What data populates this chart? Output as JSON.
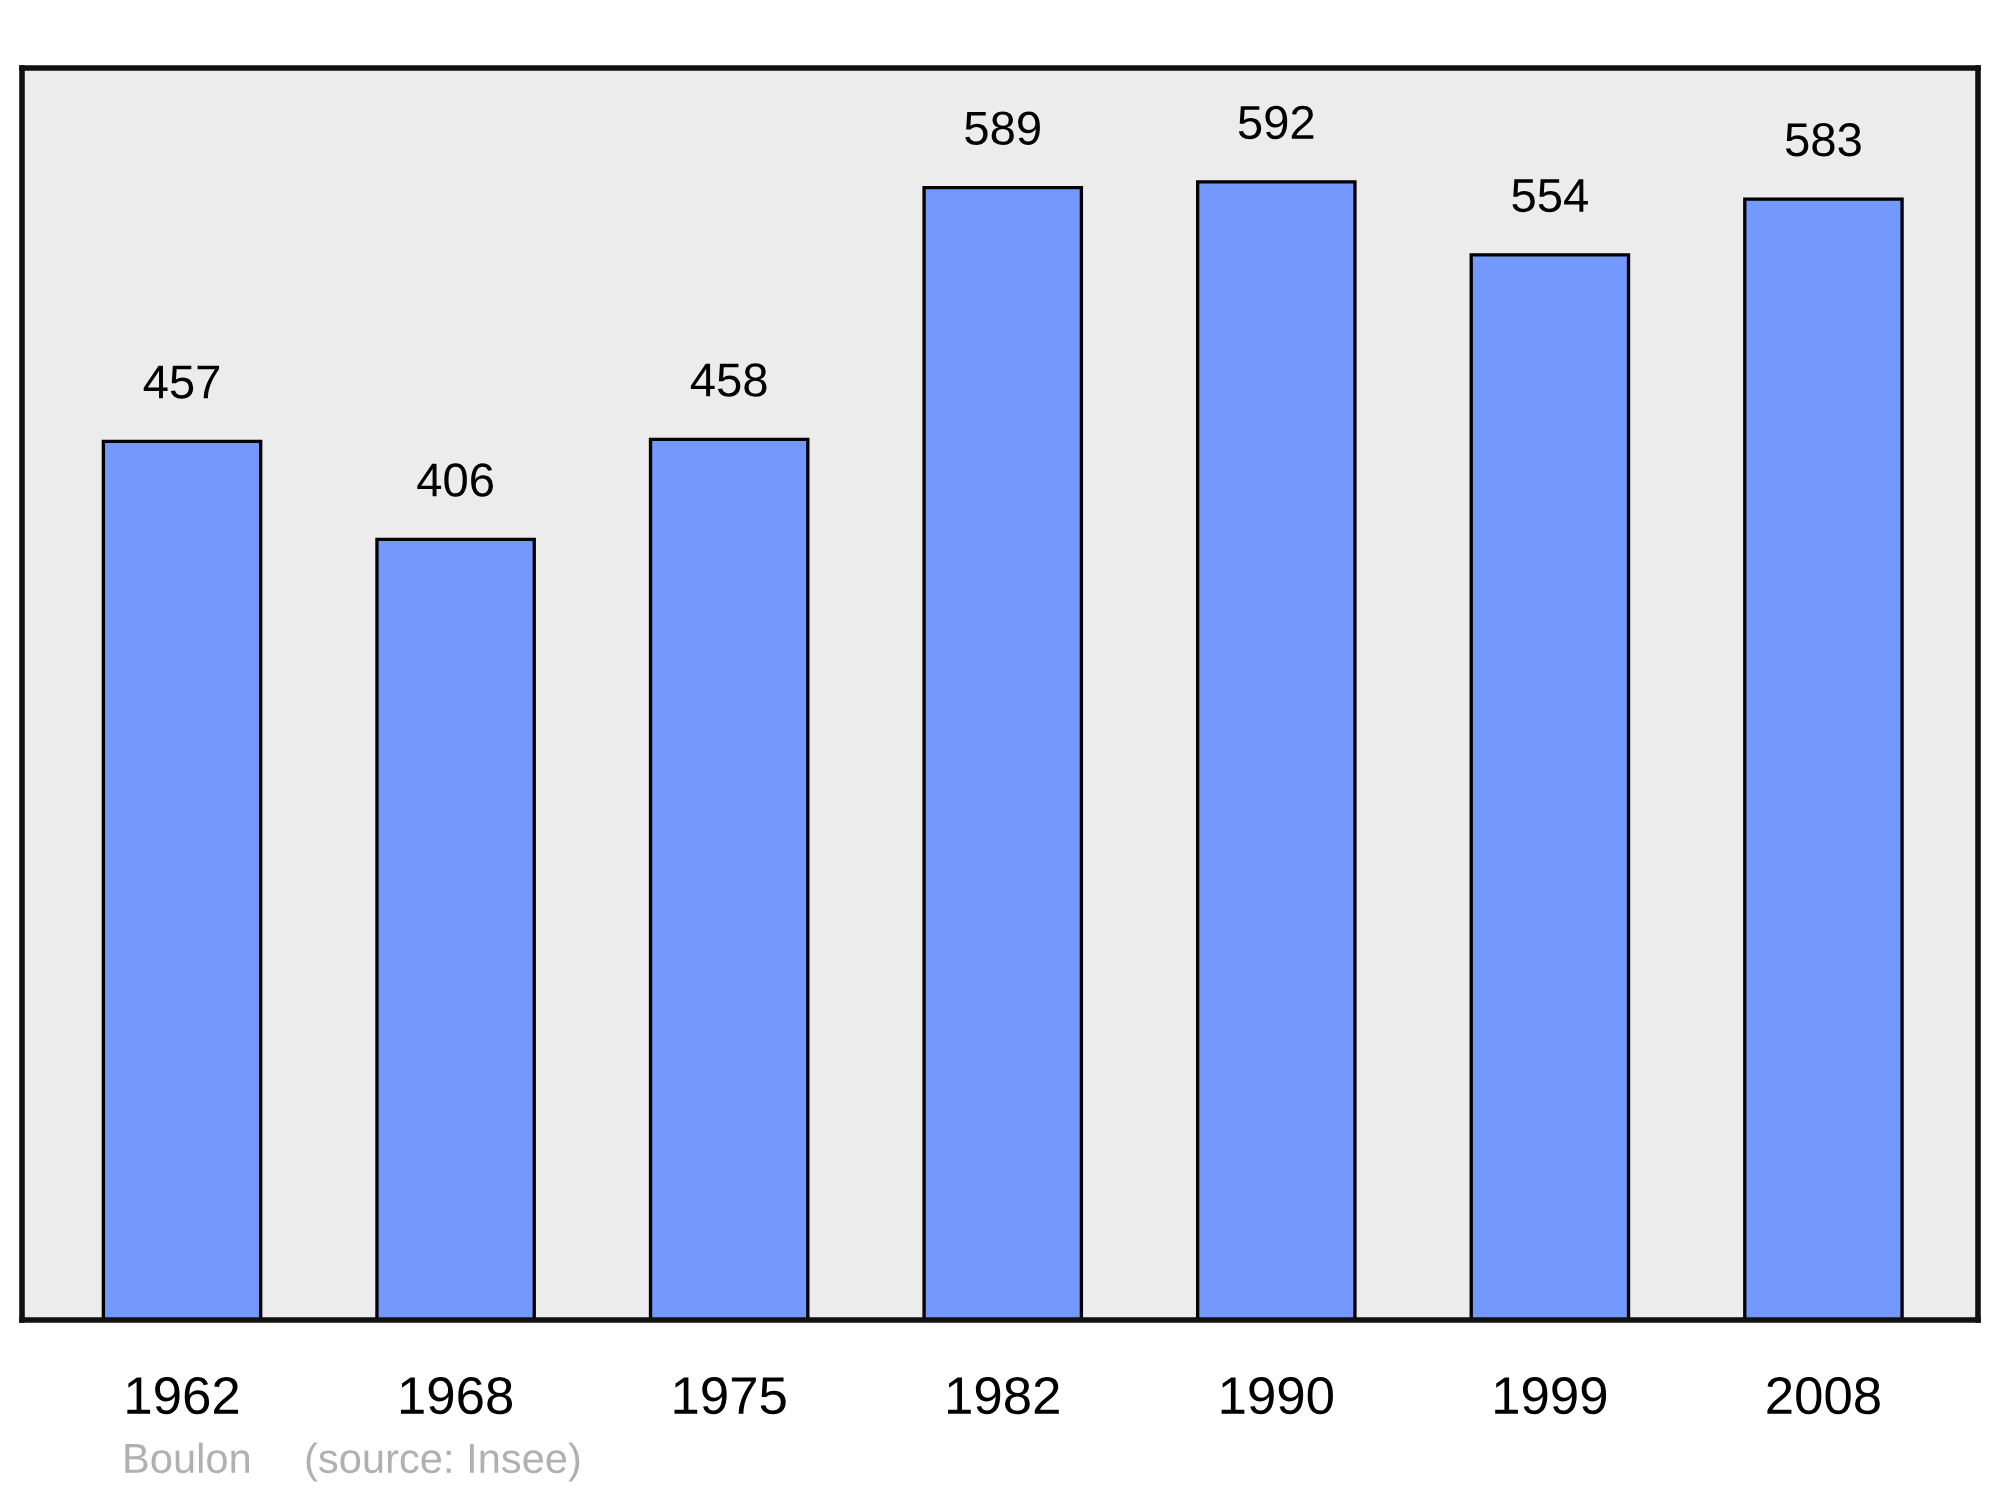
{
  "chart_data": {
    "type": "bar",
    "categories": [
      "1962",
      "1968",
      "1975",
      "1982",
      "1990",
      "1999",
      "2008"
    ],
    "values": [
      457,
      406,
      458,
      589,
      592,
      554,
      583
    ],
    "color": "#7399ff",
    "data_labels": true,
    "tick_labels": "x",
    "annotations": [
      "Boulon",
      "(source: Insee)"
    ]
  }
}
